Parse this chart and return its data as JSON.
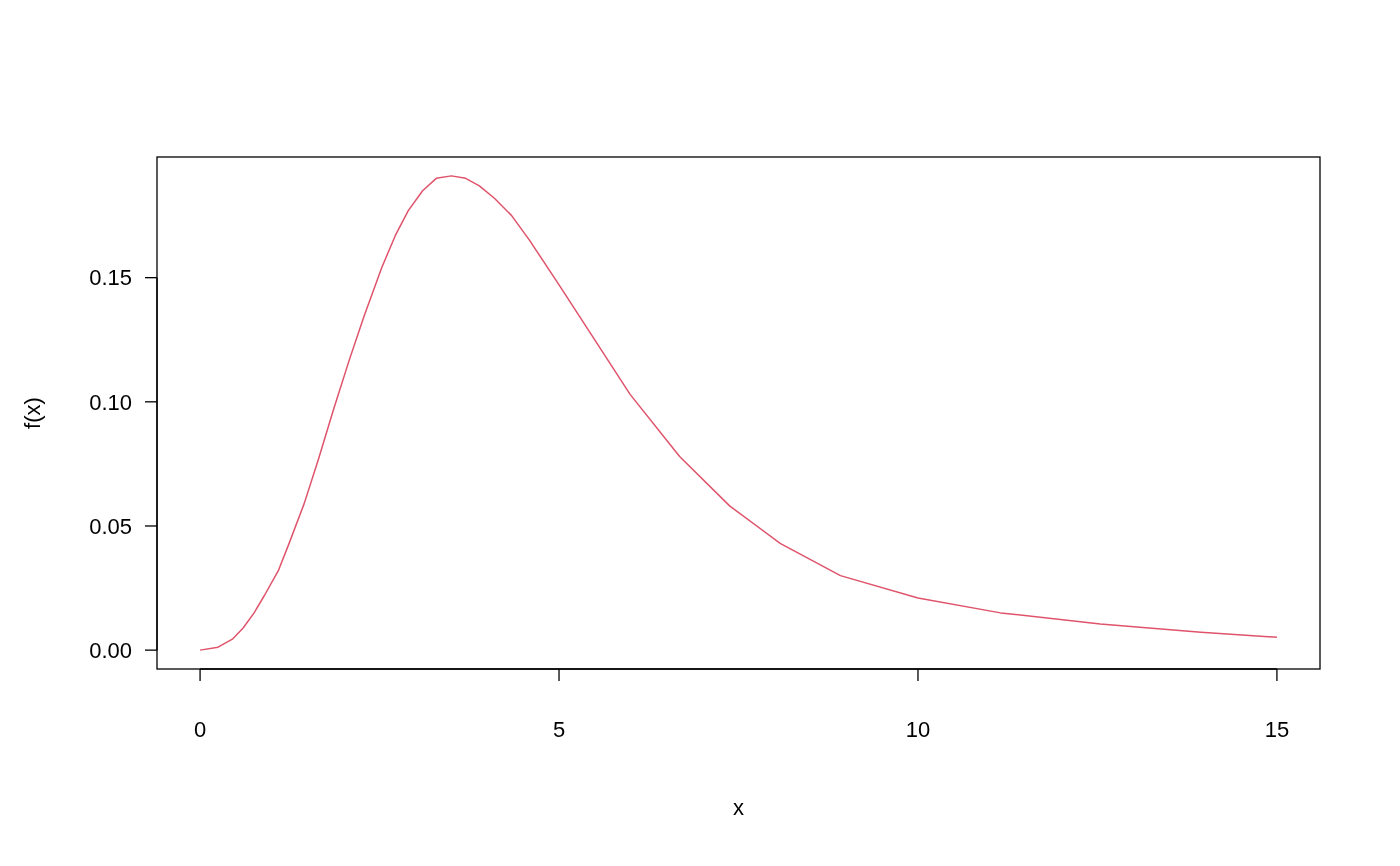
{
  "chart_data": {
    "type": "line",
    "xlabel": "x",
    "ylabel": "f(x)",
    "x": [
      0,
      0.25,
      0.45,
      0.6,
      0.75,
      0.9,
      1.09,
      1.24,
      1.45,
      1.65,
      1.86,
      2.08,
      2.29,
      2.53,
      2.72,
      2.9,
      3.1,
      3.29,
      3.5,
      3.7,
      3.89,
      4.1,
      4.34,
      4.59,
      4.98,
      5.43,
      5.99,
      6.68,
      7.38,
      8.08,
      8.92,
      10,
      11.15,
      12.54,
      13.94,
      15
    ],
    "series": [
      {
        "color": "#df536b",
        "values": [
          0,
          0.0012,
          0.0044,
          0.0089,
          0.0149,
          0.0222,
          0.032,
          0.043,
          0.059,
          0.077,
          0.097,
          0.117,
          0.135,
          0.154,
          0.167,
          0.177,
          0.185,
          0.19,
          0.191,
          0.19,
          0.187,
          0.182,
          0.175,
          0.165,
          0.148,
          0.128,
          0.103,
          0.078,
          0.058,
          0.043,
          0.03,
          0.021,
          0.015,
          0.0105,
          0.0072,
          0.0052
        ]
      }
    ],
    "xlim": [
      -0.6,
      15.6
    ],
    "ylim": [
      -0.0076,
      0.1986
    ],
    "xticks": [
      0,
      5,
      10,
      15
    ],
    "yticks": [
      {
        "value": 0,
        "label": "0.00"
      },
      {
        "value": 0.05,
        "label": "0.05"
      },
      {
        "value": 0.1,
        "label": "0.10"
      },
      {
        "value": 0.15,
        "label": "0.15"
      }
    ],
    "grid": false,
    "marker": "none",
    "line_style": "solid"
  }
}
